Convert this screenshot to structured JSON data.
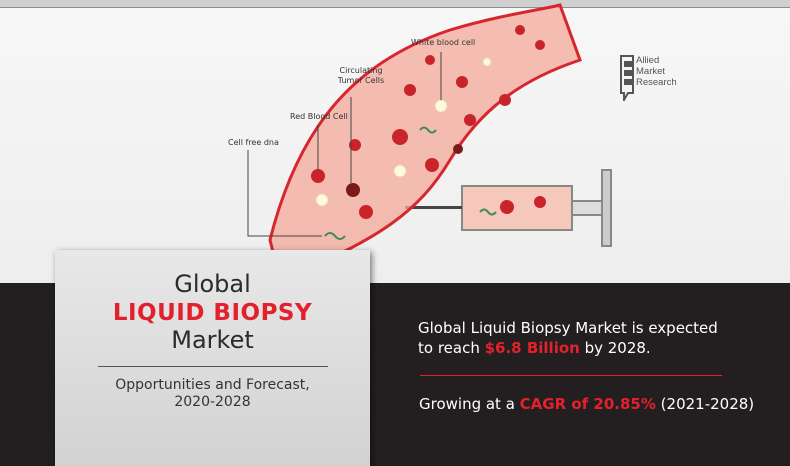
{
  "labels": {
    "white_blood_cell": "White blood cell",
    "circulating_tumor_cells": "Circulating Tumor Cells",
    "red_blood_cell": "Red Blood Cell",
    "cell_free_dna": "Cell free dna"
  },
  "logo": {
    "line1": "Allied",
    "line2": "Market",
    "line3": "Research"
  },
  "card": {
    "line1": "Global",
    "line2": "LIQUID BIOPSY",
    "line3": "Market",
    "subtitle_line1": "Opportunities and Forecast,",
    "subtitle_line2": "2020-2028"
  },
  "stats": {
    "text1": "Global Liquid Biopsy Market is expected",
    "text2_pre": "to reach ",
    "value": "$6.8 Billion",
    "text2_post": " by 2028.",
    "growth_pre": "Growing at a ",
    "cagr": "CAGR of 20.85%",
    "growth_post": " (2021-2028)"
  },
  "colors": {
    "accent": "#e3212d",
    "dark_bg": "#231f20",
    "vessel": "#f4a99a"
  }
}
